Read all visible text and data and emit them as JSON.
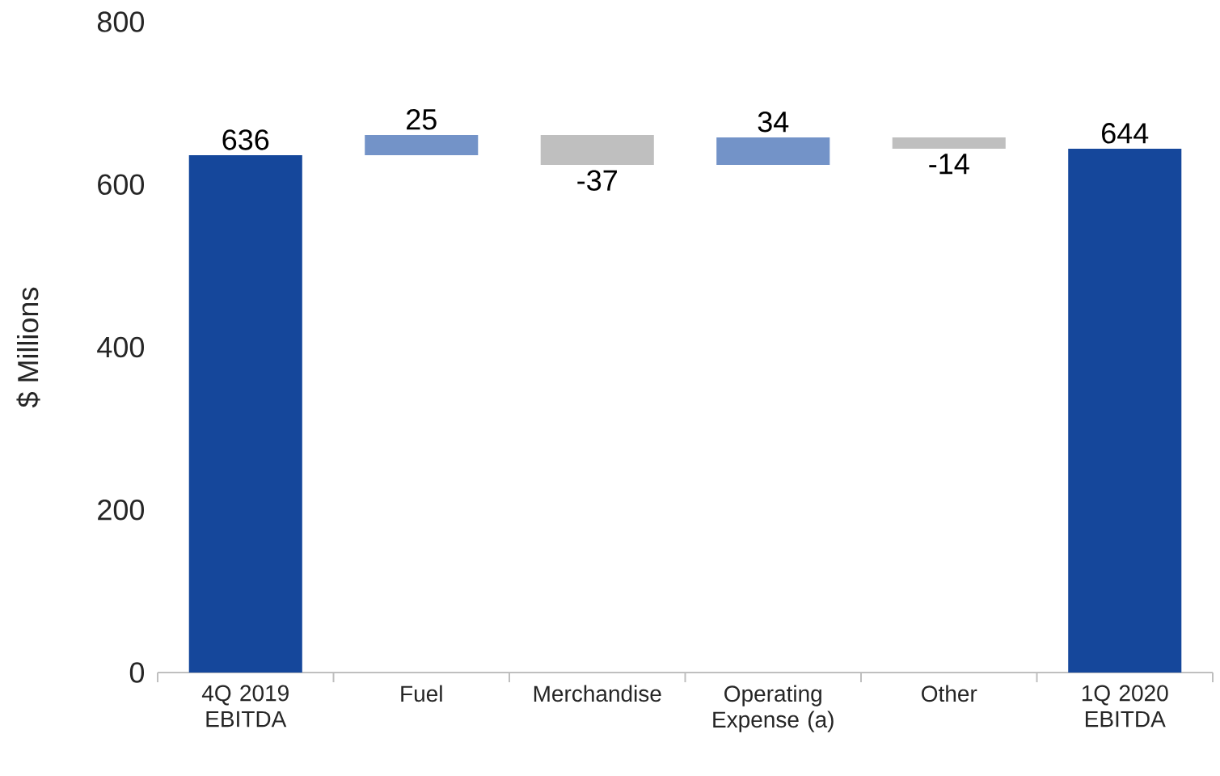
{
  "chart_data": {
    "type": "bar",
    "ylabel": "$ Millions",
    "categories": [
      "4Q 2019 EBITDA",
      "Fuel",
      "Merchandise",
      "Operating Expense (a)",
      "Other",
      "1Q 2020 EBITDA"
    ],
    "values": [
      636,
      25,
      -37,
      34,
      -14,
      644
    ],
    "base": [
      0,
      636,
      661,
      624,
      658,
      0
    ],
    "colors": [
      "#15479b",
      "#7393c8",
      "#bfbfbf",
      "#7393c8",
      "#bfbfbf",
      "#15479b"
    ],
    "ylim": [
      0,
      800
    ],
    "yticks": [
      0,
      200,
      400,
      600,
      800
    ],
    "data_labels": true,
    "grid": false
  }
}
